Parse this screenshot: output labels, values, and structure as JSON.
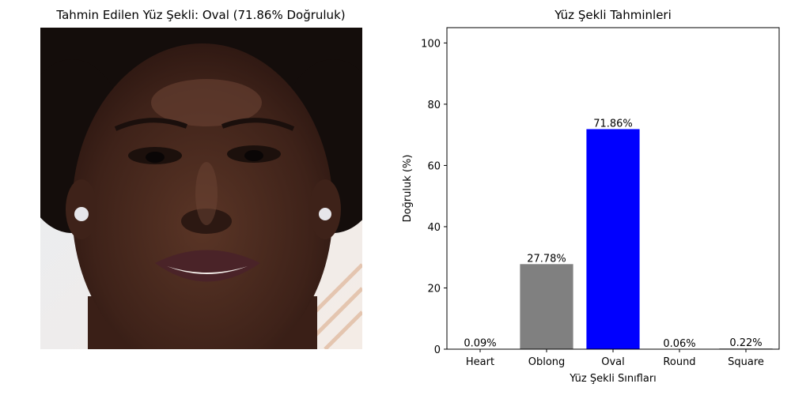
{
  "left_panel": {
    "title": "Tahmin Edilen Yüz Şekli: Oval (71.86% Doğruluk)"
  },
  "colors": {
    "highlight": "#0000ff",
    "other": "#808080",
    "axis": "#000000"
  },
  "chart_data": {
    "type": "bar",
    "title": "Yüz Şekli Tahminleri",
    "xlabel": "Yüz Şekli Sınıfları",
    "ylabel": "Doğruluk (%)",
    "categories": [
      "Heart",
      "Oblong",
      "Oval",
      "Round",
      "Square"
    ],
    "values": [
      0.09,
      27.78,
      71.86,
      0.06,
      0.22
    ],
    "data_labels": [
      "0.09%",
      "27.78%",
      "71.86%",
      "0.06%",
      "0.22%"
    ],
    "bar_colors": [
      "#808080",
      "#808080",
      "#0000ff",
      "#808080",
      "#808080"
    ],
    "ylim": [
      0,
      105
    ],
    "yticks": [
      0,
      20,
      40,
      60,
      80,
      100
    ],
    "grid": false,
    "legend": "none"
  }
}
